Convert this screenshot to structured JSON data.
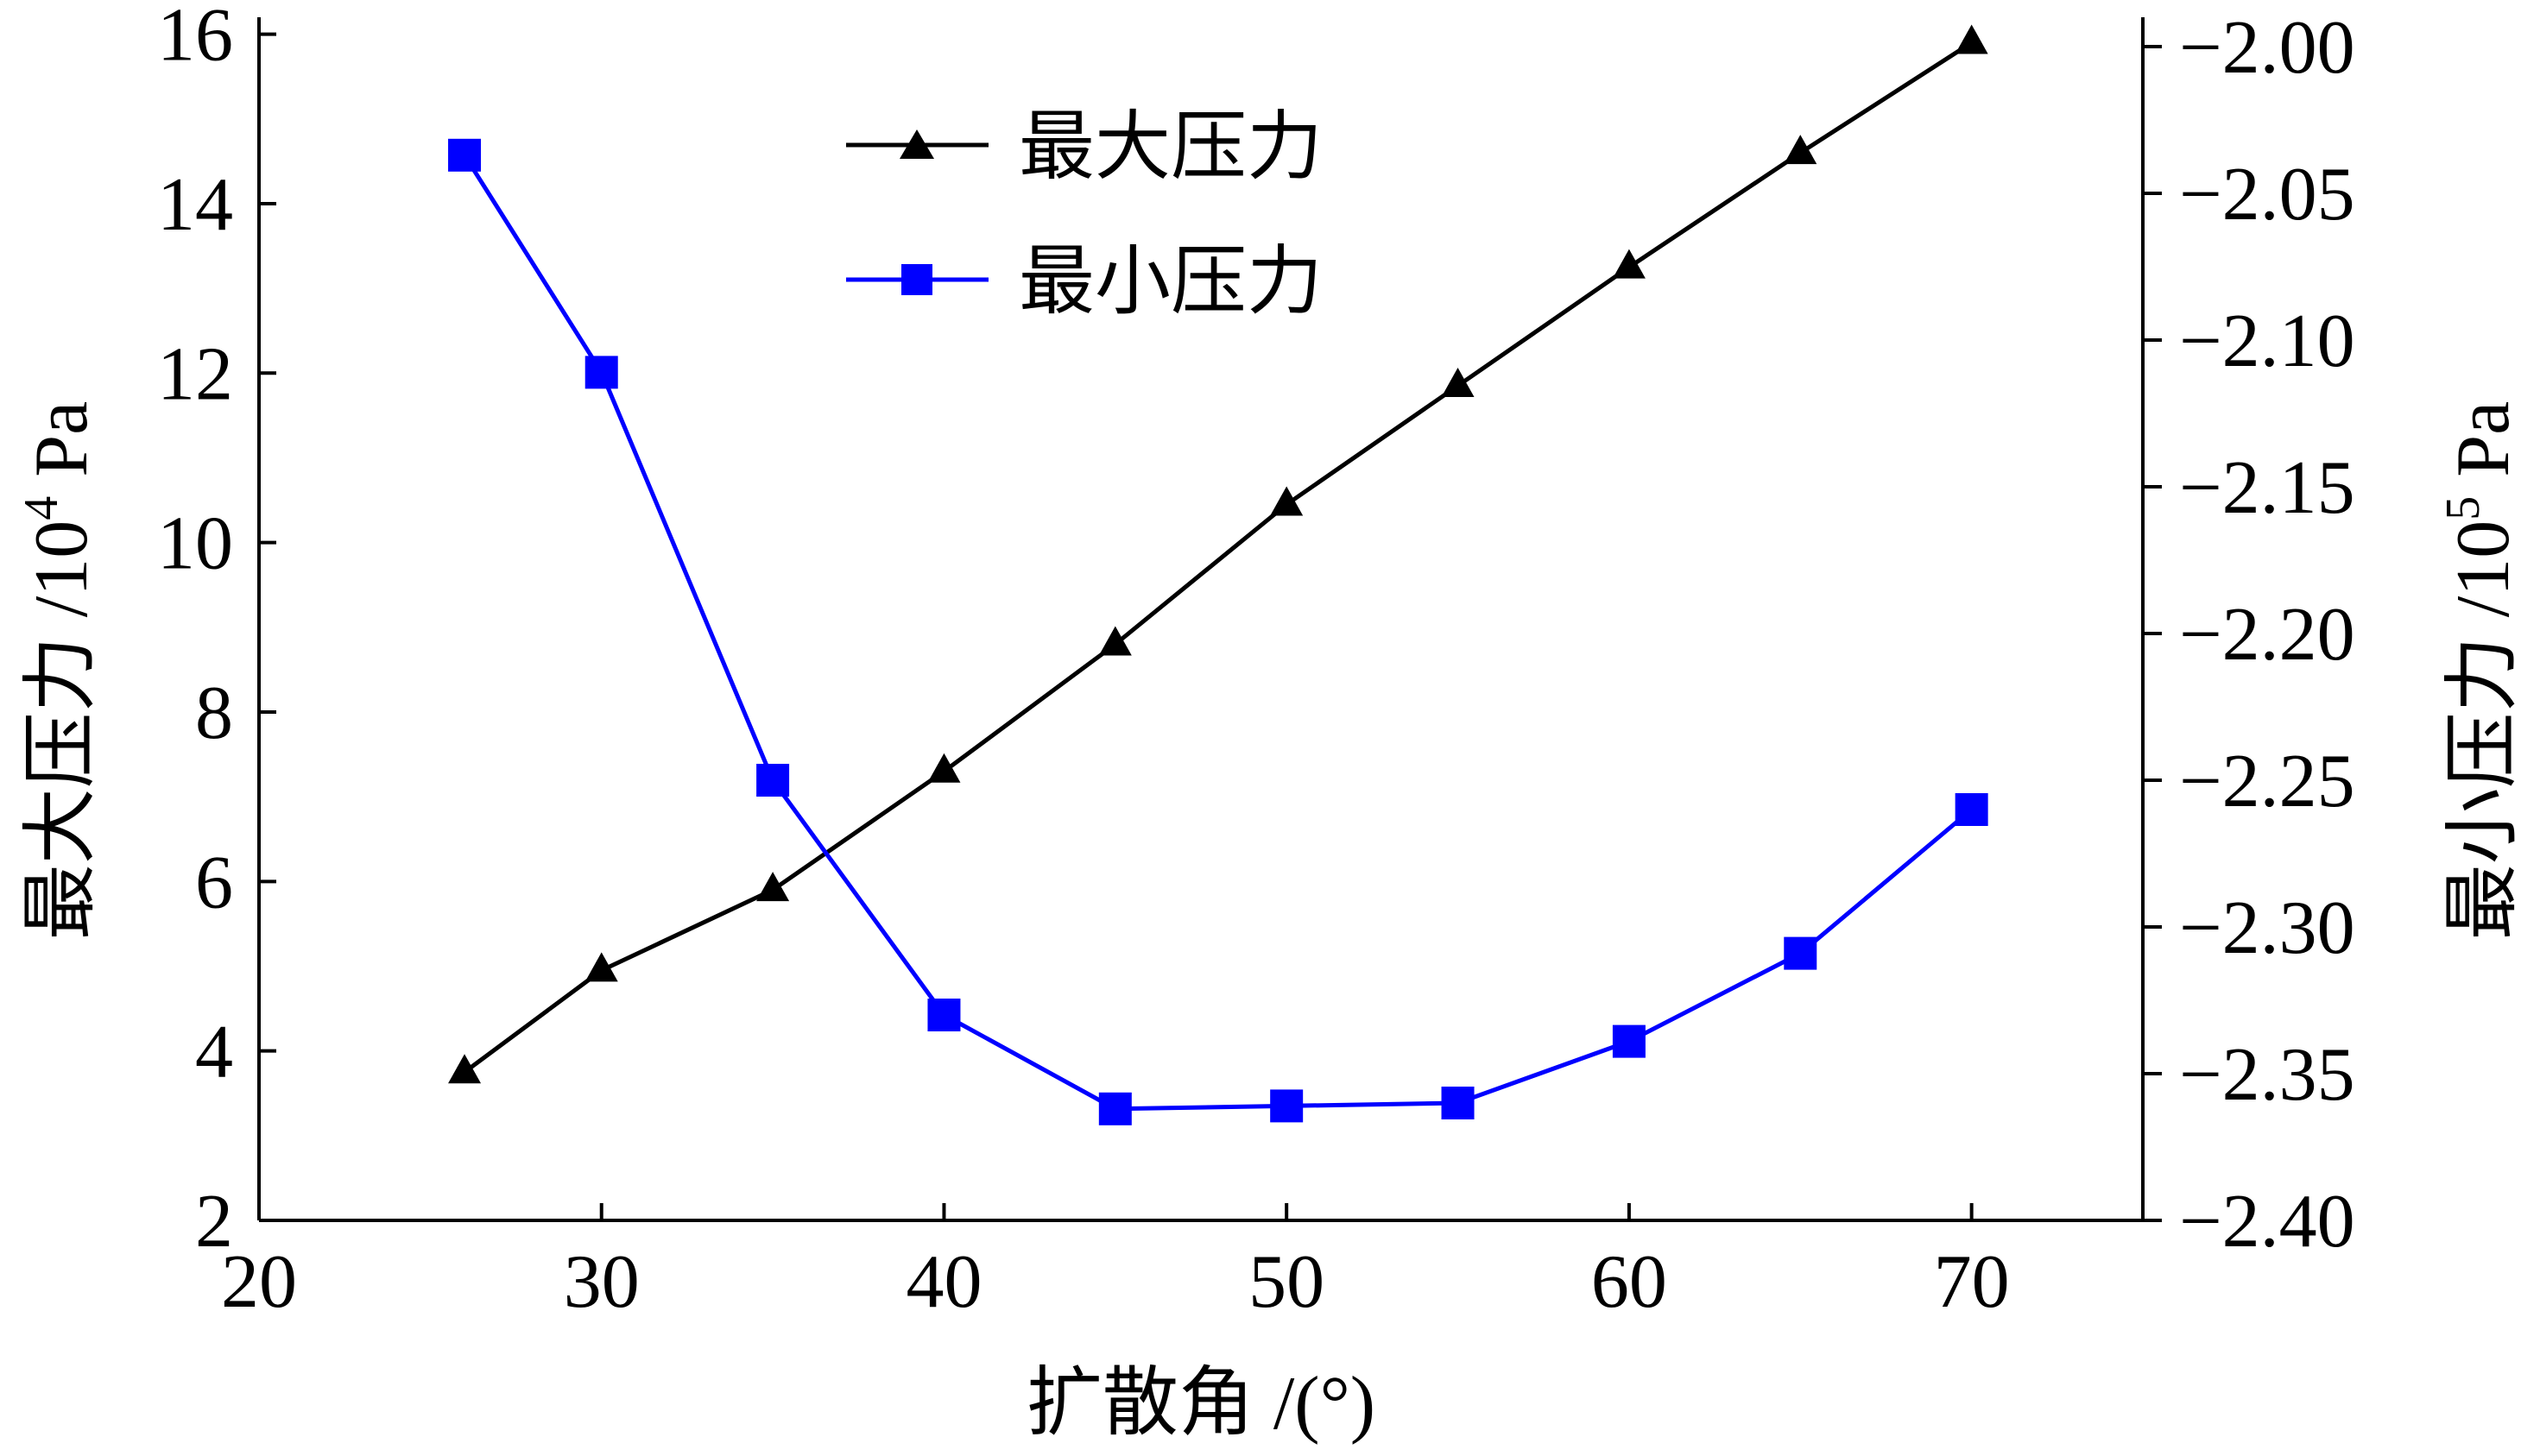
{
  "chart_data": {
    "type": "line",
    "title": "",
    "xlabel": "扩散角 /(°)",
    "ylabel_left": {
      "main": "最大压力 /10",
      "sup": "4",
      "unit": " Pa"
    },
    "ylabel_right": {
      "main": "最小压力 /10",
      "sup": "5",
      "unit": " Pa"
    },
    "xlim": [
      20,
      75
    ],
    "ylim_left": [
      2,
      16.2
    ],
    "ylim_right": [
      -2.4,
      -1.99
    ],
    "x_ticks": [
      20,
      30,
      40,
      50,
      60,
      70
    ],
    "x_tick_labels": [
      "20",
      "30",
      "40",
      "50",
      "60",
      "70"
    ],
    "y_left_ticks": [
      2,
      4,
      6,
      8,
      10,
      12,
      14,
      16
    ],
    "y_left_tick_labels": [
      "2",
      "4",
      "6",
      "8",
      "10",
      "12",
      "14",
      "16"
    ],
    "y_right_ticks": [
      -2.4,
      -2.35,
      -2.3,
      -2.25,
      -2.2,
      -2.15,
      -2.1,
      -2.05,
      -2.0
    ],
    "y_right_tick_labels": [
      "−2.40",
      "−2.35",
      "−2.30",
      "−2.25",
      "−2.20",
      "−2.15",
      "−2.10",
      "−2.05",
      "−2.00"
    ],
    "grid": false,
    "legend_position": "top-center",
    "series": [
      {
        "name": "最大压力",
        "axis": "left",
        "color": "#000000",
        "marker": "triangle",
        "x": [
          26,
          30,
          35,
          40,
          45,
          50,
          55,
          60,
          65,
          70
        ],
        "values": [
          3.75,
          4.95,
          5.9,
          7.3,
          8.8,
          10.45,
          11.85,
          13.25,
          14.6,
          15.9
        ]
      },
      {
        "name": "最小压力",
        "axis": "right",
        "color": "#0000ff",
        "marker": "square",
        "x": [
          26,
          30,
          35,
          40,
          45,
          50,
          55,
          60,
          65,
          70
        ],
        "values": [
          -2.037,
          -2.111,
          -2.25,
          -2.33,
          -2.362,
          -2.361,
          -2.36,
          -2.339,
          -2.309,
          -2.26
        ]
      }
    ]
  }
}
